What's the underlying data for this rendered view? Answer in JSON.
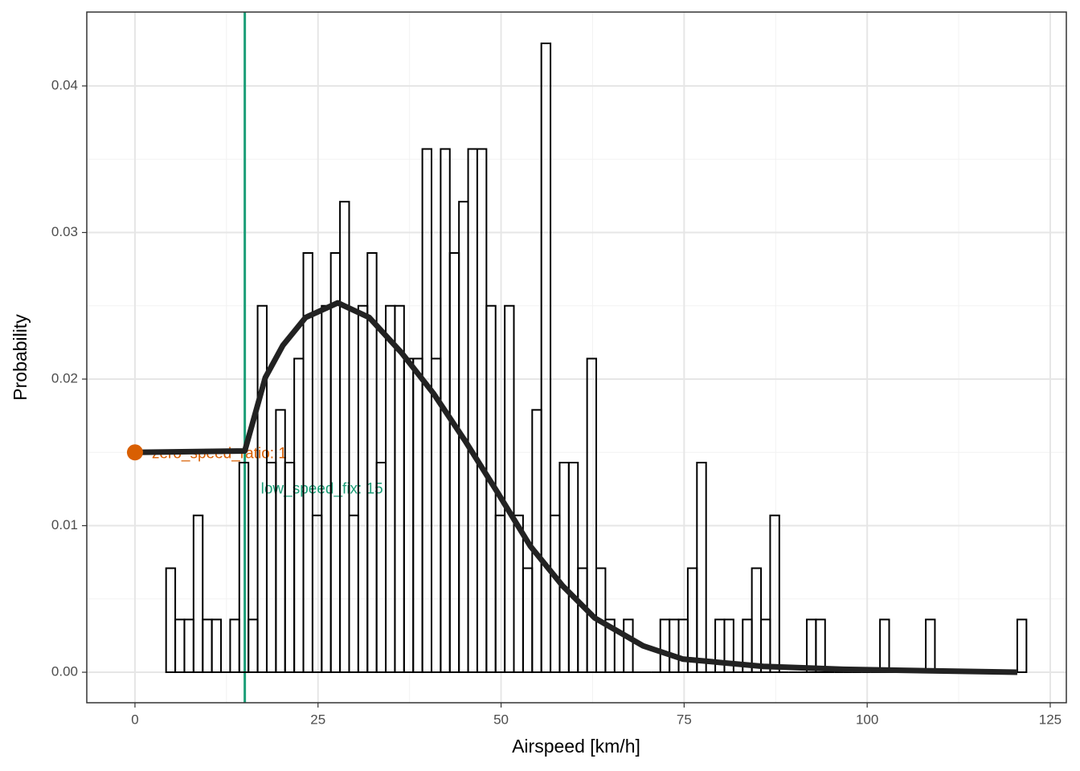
{
  "chart_data": {
    "type": "histogram",
    "x_label": "Airspeed [km/h]",
    "y_label": "Probability",
    "bins": [
      4.25,
      5.5,
      6.75,
      8,
      9.25,
      10.5,
      11.75,
      13,
      14.25,
      15.5,
      16.75,
      18,
      19.25,
      20.5,
      21.75,
      23,
      24.25,
      25.5,
      26.75,
      28,
      29.25,
      30.5,
      31.75,
      33,
      34.25,
      35.5,
      36.75,
      38,
      39.25,
      40.5,
      41.75,
      43,
      44.25,
      45.5,
      46.75,
      48,
      49.25,
      50.5,
      51.75,
      53,
      54.25,
      55.5,
      56.75,
      58,
      59.25,
      60.5,
      61.75,
      63,
      64.25,
      65.5,
      66.75,
      68,
      69.25,
      70.5,
      71.75,
      73,
      74.25,
      75.5,
      76.75,
      78,
      79.25,
      80.5,
      81.75,
      83,
      84.25,
      85.5,
      86.75,
      88,
      89.25,
      90.5,
      91.75,
      93,
      94.25,
      95.5,
      96.75,
      98,
      99.25,
      100.5,
      101.75,
      103,
      104.25,
      105.5,
      106.75,
      108,
      109.25,
      110.5,
      111.75,
      113,
      114.25,
      115.5,
      116.75,
      118,
      119.25,
      120.5,
      121.75
    ],
    "values": [
      0.0071,
      0.0036,
      0.0036,
      0.0107,
      0.0036,
      0.0036,
      0,
      0.0036,
      0.0143,
      0.0036,
      0.025,
      0.0143,
      0.0179,
      0.0143,
      0.0214,
      0.0286,
      0.0107,
      0.025,
      0.0286,
      0.0321,
      0.0107,
      0.025,
      0.0286,
      0.0143,
      0.025,
      0.025,
      0.0214,
      0.0214,
      0.0357,
      0.0214,
      0.0357,
      0.0286,
      0.0321,
      0.0357,
      0.0357,
      0.025,
      0.0107,
      0.025,
      0.0107,
      0.0071,
      0.0179,
      0.0429,
      0.0107,
      0.0143,
      0.0143,
      0.0071,
      0.0214,
      0.0071,
      0.0036,
      0,
      0.0036,
      0,
      0,
      0,
      0.0036,
      0.0036,
      0.0036,
      0.0071,
      0.0143,
      0,
      0.0036,
      0.0036,
      0,
      0.0036,
      0.0071,
      0.0036,
      0.0107,
      0,
      0,
      0,
      0.0036,
      0.0036,
      0,
      0,
      0,
      0,
      0,
      0,
      0.0036,
      0,
      0,
      0,
      0,
      0.0036,
      0,
      0,
      0,
      0,
      0,
      0,
      0,
      0,
      0,
      0.0036
    ],
    "color": "#000000",
    "line": {
      "color": "#222222",
      "x": [
        0,
        15,
        17.8,
        20.2,
        23.3,
        27.7,
        32,
        36.4,
        40.8,
        45.2,
        49.6,
        54,
        58.4,
        62.8,
        69.4,
        74.8,
        85.8,
        96.8,
        120.5
      ],
      "values": [
        0.015,
        0.0151,
        0.0201,
        0.0223,
        0.0242,
        0.0252,
        0.0242,
        0.0218,
        0.019,
        0.0157,
        0.0122,
        0.0086,
        0.0059,
        0.0037,
        0.0018,
        0.0009,
        0.0004,
        0.0002,
        0
      ]
    },
    "vline": {
      "x": 15,
      "color": "#1b9e77"
    },
    "point": {
      "x": 0,
      "y": 0.015,
      "color": "#d95f02"
    },
    "annotations": [
      "zero_speed_ratio: 1",
      "low_speed_fix: 15"
    ],
    "xlim": [
      -6.58,
      127.2
    ],
    "ylim": [
      -0.00208,
      0.04504
    ],
    "xticks": [
      0,
      25,
      50,
      75,
      100,
      125
    ],
    "yticks": [
      {
        "value": 0,
        "label": "0.00"
      },
      0.01,
      0.02,
      0.03,
      0.04
    ],
    "grid": true
  }
}
